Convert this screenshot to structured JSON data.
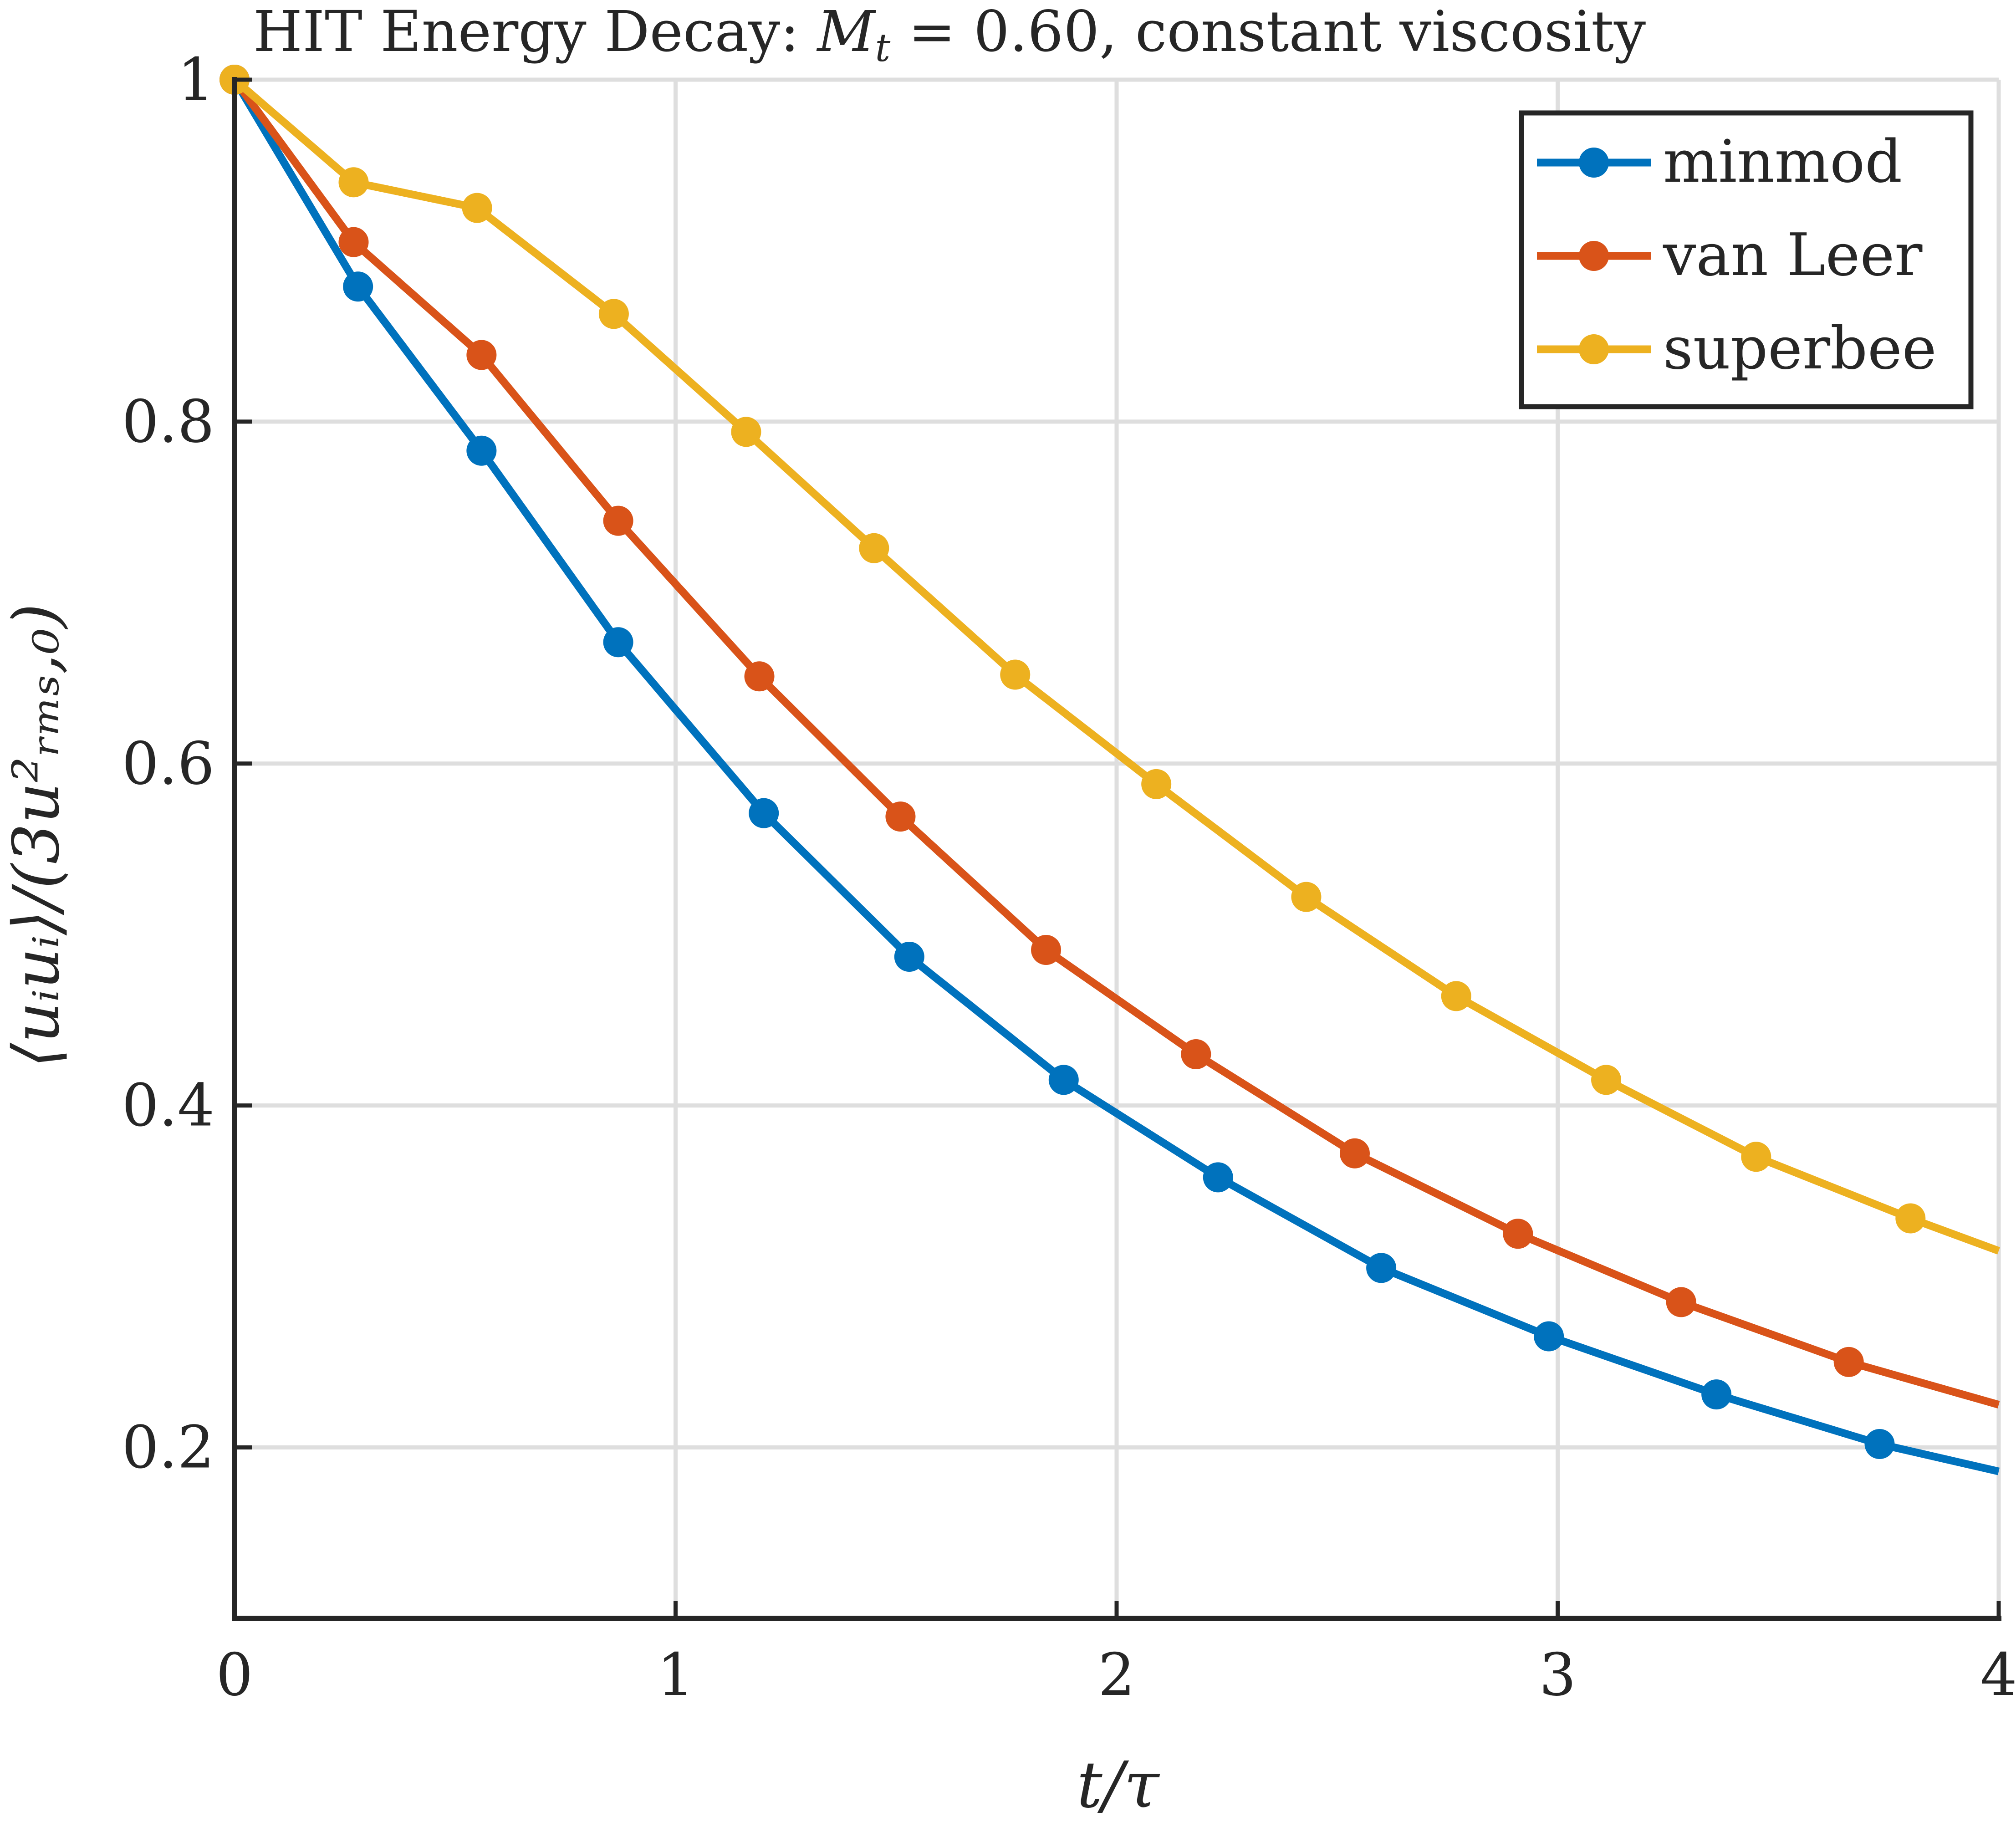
{
  "chart_data": {
    "type": "line",
    "title": "HIT Energy Decay: M_t = 0.60, constant viscosity",
    "title_parts": {
      "prefix": "HIT Energy Decay: ",
      "math_symbol": "M",
      "math_subscript": "t",
      "equals": " = 0.60",
      "suffix": ", constant viscosity"
    },
    "xlabel": "t/τ",
    "ylabel": "⟨uᵢuᵢ⟩/(3u²ᵣₘₛ,₀)",
    "xlim": [
      0,
      4
    ],
    "ylim": [
      0.1,
      1.0
    ],
    "xticks": [
      0,
      1,
      2,
      3,
      4
    ],
    "xtick_labels": [
      "0",
      "1",
      "2",
      "3",
      "4"
    ],
    "yticks": [
      0.2,
      0.4,
      0.6,
      0.8,
      1.0
    ],
    "ytick_labels": [
      "0.2",
      "0.4",
      "0.6",
      "0.8",
      "1"
    ],
    "grid": true,
    "legend_position": "top-right",
    "series": [
      {
        "name": "minmod",
        "color": "#0072BD",
        "line": {
          "x": [
            0,
            0.28,
            0.56,
            0.87,
            1.2,
            1.53,
            1.88,
            2.23,
            2.6,
            2.98,
            3.36,
            3.73,
            4.0
          ],
          "y": [
            1.0,
            0.879,
            0.783,
            0.671,
            0.571,
            0.487,
            0.415,
            0.358,
            0.305,
            0.265,
            0.231,
            0.202,
            0.186
          ]
        },
        "markers": {
          "x": [
            0,
            0.28,
            0.56,
            0.87,
            1.2,
            1.53,
            1.88,
            2.23,
            2.6,
            2.98,
            3.36,
            3.73
          ],
          "y": [
            1.0,
            0.879,
            0.783,
            0.671,
            0.571,
            0.487,
            0.415,
            0.358,
            0.305,
            0.265,
            0.231,
            0.202
          ]
        }
      },
      {
        "name": "van Leer",
        "color": "#D95319",
        "line": {
          "x": [
            0,
            0.27,
            0.56,
            0.87,
            1.19,
            1.51,
            1.84,
            2.18,
            2.54,
            2.91,
            3.28,
            3.66,
            4.0
          ],
          "y": [
            1.0,
            0.905,
            0.839,
            0.742,
            0.651,
            0.569,
            0.491,
            0.43,
            0.372,
            0.325,
            0.285,
            0.25,
            0.225
          ]
        },
        "markers": {
          "x": [
            0,
            0.27,
            0.56,
            0.87,
            1.19,
            1.51,
            1.84,
            2.18,
            2.54,
            2.91,
            3.28,
            3.66
          ],
          "y": [
            1.0,
            0.905,
            0.839,
            0.742,
            0.651,
            0.569,
            0.491,
            0.43,
            0.372,
            0.325,
            0.285,
            0.25
          ]
        }
      },
      {
        "name": "superbee",
        "color": "#EDB120",
        "line": {
          "x": [
            0,
            0.27,
            0.55,
            0.86,
            1.16,
            1.45,
            1.77,
            2.09,
            2.43,
            2.77,
            3.11,
            3.45,
            3.8,
            4.0
          ],
          "y": [
            1.0,
            0.94,
            0.925,
            0.863,
            0.794,
            0.726,
            0.652,
            0.588,
            0.522,
            0.464,
            0.415,
            0.37,
            0.334,
            0.315
          ]
        },
        "markers": {
          "x": [
            0,
            0.27,
            0.55,
            0.86,
            1.16,
            1.45,
            1.77,
            2.09,
            2.43,
            2.77,
            3.11,
            3.45,
            3.8
          ],
          "y": [
            1.0,
            0.94,
            0.925,
            0.863,
            0.794,
            0.726,
            0.652,
            0.588,
            0.522,
            0.464,
            0.415,
            0.37,
            0.334
          ]
        }
      }
    ]
  }
}
